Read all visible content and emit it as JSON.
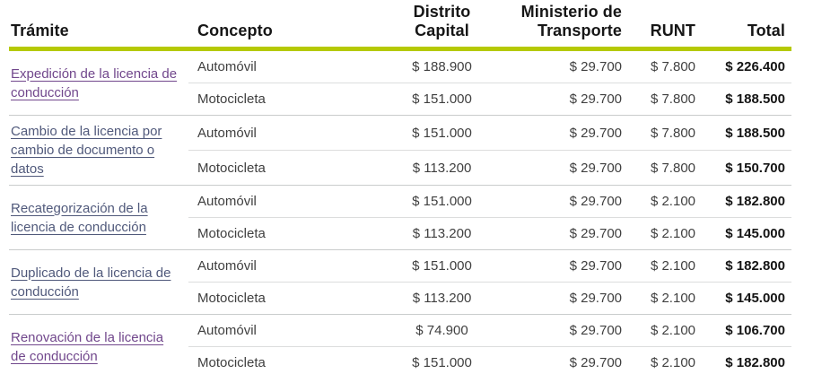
{
  "colors": {
    "accent_bar": "#b5c903",
    "link_normal": "#50597b",
    "link_visited": "#71478c",
    "total_text": "#141414"
  },
  "table": {
    "headers": {
      "tramite": "Trámite",
      "concepto": "Concepto",
      "distrito": "Distrito Capital",
      "ministerio": "Ministerio de Transporte",
      "runt": "RUNT",
      "total": "Total"
    },
    "groups": [
      {
        "tramite": "Expedición de la licencia de conducción",
        "link_variant": "visited",
        "rows": [
          {
            "concepto": "Automóvil",
            "distrito": "$ 188.900",
            "ministerio": "$ 29.700",
            "runt": "$ 7.800",
            "total": "$ 226.400"
          },
          {
            "concepto": "Motocicleta",
            "distrito": "$ 151.000",
            "ministerio": "$ 29.700",
            "runt": "$ 7.800",
            "total": "$ 188.500"
          }
        ]
      },
      {
        "tramite": "Cambio de la licencia por cambio de documento o datos",
        "link_variant": "normal",
        "rows": [
          {
            "concepto": "Automóvil",
            "distrito": "$ 151.000",
            "ministerio": "$ 29.700",
            "runt": "$ 7.800",
            "total": "$ 188.500"
          },
          {
            "concepto": "Motocicleta",
            "distrito": "$ 113.200",
            "ministerio": "$ 29.700",
            "runt": "$ 7.800",
            "total": "$ 150.700"
          }
        ]
      },
      {
        "tramite": "Recategorización de la licencia de conducción",
        "link_variant": "normal",
        "rows": [
          {
            "concepto": "Automóvil",
            "distrito": "$ 151.000",
            "ministerio": "$ 29.700",
            "runt": "$ 2.100",
            "total": "$ 182.800"
          },
          {
            "concepto": "Motocicleta",
            "distrito": "$ 113.200",
            "ministerio": "$ 29.700",
            "runt": "$ 2.100",
            "total": "$ 145.000"
          }
        ]
      },
      {
        "tramite": "Duplicado de la licencia de conducción",
        "link_variant": "normal",
        "rows": [
          {
            "concepto": "Automóvil",
            "distrito": "$ 151.000",
            "ministerio": "$ 29.700",
            "runt": "$ 2.100",
            "total": "$ 182.800"
          },
          {
            "concepto": "Motocicleta",
            "distrito": "$ 113.200",
            "ministerio": "$ 29.700",
            "runt": "$ 2.100",
            "total": "$ 145.000"
          }
        ]
      },
      {
        "tramite": "Renovación de la licencia de conducción",
        "link_variant": "visited",
        "rows": [
          {
            "concepto": "Automóvil",
            "distrito": "$ 74.900",
            "ministerio": "$ 29.700",
            "runt": "$ 2.100",
            "total": "$ 106.700"
          },
          {
            "concepto": "Motocicleta",
            "distrito": "$ 151.000",
            "ministerio": "$ 29.700",
            "runt": "$ 2.100",
            "total": "$ 182.800"
          }
        ]
      }
    ]
  }
}
